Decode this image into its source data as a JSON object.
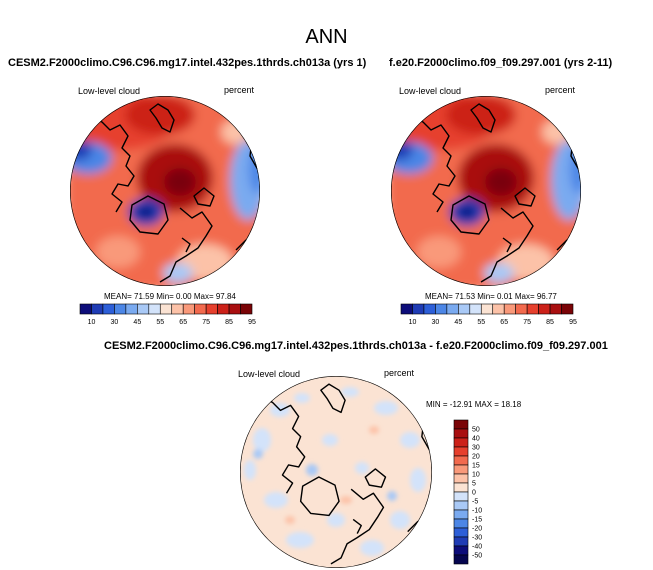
{
  "chart_data": [
    {
      "type": "heatmap",
      "projection": "north-polar-stereographic",
      "title": "ANN",
      "case_title": "CESM2.F2000climo.C96.C96.mg17.intel.432pes.1thrds.ch013a (yrs 1)",
      "variable": "Low-level cloud",
      "units": "percent",
      "stats": "MEAN= 71.59   Min=  0.00   Max=  97.84",
      "colorbar": {
        "orientation": "horizontal",
        "ticks": [
          "10",
          "30",
          "45",
          "55",
          "65",
          "75",
          "85",
          "95"
        ],
        "colors": [
          "#0d0d7a",
          "#1f3cb5",
          "#2d5fd8",
          "#4c86e6",
          "#7aaaf0",
          "#a9c9f6",
          "#d3e3fa",
          "#fbe3d3",
          "#fcc2a8",
          "#f9997a",
          "#f26a4e",
          "#e6402d",
          "#cc2119",
          "#a90f10",
          "#7a0407"
        ]
      },
      "regions": "red/orange dominant (60-95%) over oceans and Arctic; blue (10-45%) over Greenland, Siberia interior, western North America"
    },
    {
      "type": "heatmap",
      "projection": "north-polar-stereographic",
      "case_title": "f.e20.F2000climo.f09_f09.297.001 (yrs 2-11)",
      "variable": "Low-level cloud",
      "units": "percent",
      "stats": "MEAN= 71.53   Min=  0.01   Max=  96.77",
      "colorbar": {
        "orientation": "horizontal",
        "ticks": [
          "10",
          "30",
          "45",
          "55",
          "65",
          "75",
          "85",
          "95"
        ]
      }
    },
    {
      "type": "heatmap",
      "projection": "north-polar-stereographic",
      "case_title": "CESM2.F2000climo.C96.C96.mg17.intel.432pes.1thrds.ch013a - f.e20.F2000climo.f09_f09.297.001",
      "variable": "Low-level cloud",
      "units": "percent",
      "stats": "MIN = -12.91  MAX =  18.18",
      "colorbar": {
        "orientation": "vertical",
        "ticks": [
          "50",
          "40",
          "30",
          "20",
          "15",
          "10",
          "5",
          "0",
          "-5",
          "-10",
          "-15",
          "-20",
          "-30",
          "-40",
          "-50"
        ],
        "colors": [
          "#7a0407",
          "#a90f10",
          "#cc2119",
          "#e6402d",
          "#f26a4e",
          "#f9997a",
          "#fcc2a8",
          "#fbe3d3",
          "#d3e3fa",
          "#a9c9f6",
          "#7aaaf0",
          "#4c86e6",
          "#2d5fd8",
          "#1f3cb5",
          "#0d0d7a",
          "#06064f"
        ]
      },
      "regions": "mostly light peach (0 to 5) with scattered light blue (-5 to 0) patches"
    }
  ]
}
